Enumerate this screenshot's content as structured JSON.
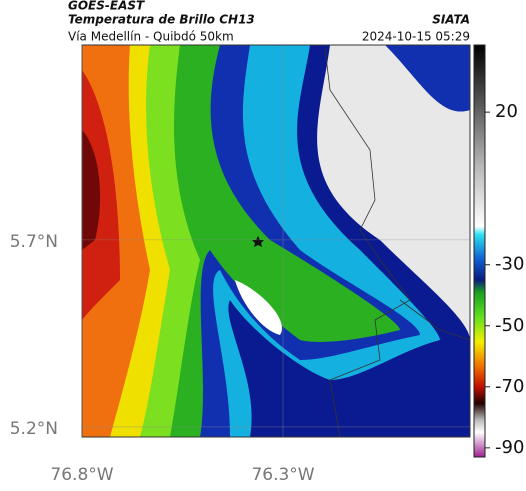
{
  "header": {
    "source": "GOES-EAST",
    "title": "Temperatura de Brillo CH13",
    "subtitle": "Vía Medellín - Quibdó 50km",
    "brand": "SIATA",
    "timestamp": "2024-10-15 05:29"
  },
  "map": {
    "xlim": [
      -76.8,
      -75.835
    ],
    "ylim": [
      5.173,
      6.221
    ],
    "xticks": [
      {
        "value": -76.8,
        "label": "76.8°W"
      },
      {
        "value": -76.3,
        "label": "76.3°W"
      }
    ],
    "yticks": [
      {
        "value": 5.7,
        "label": "5.7°N"
      },
      {
        "value": 5.2,
        "label": "5.2°N"
      }
    ],
    "colorbar": {
      "lim": [
        42,
        -93
      ],
      "ticks": [
        20,
        -30,
        -50,
        -70,
        -90
      ]
    }
  }
}
